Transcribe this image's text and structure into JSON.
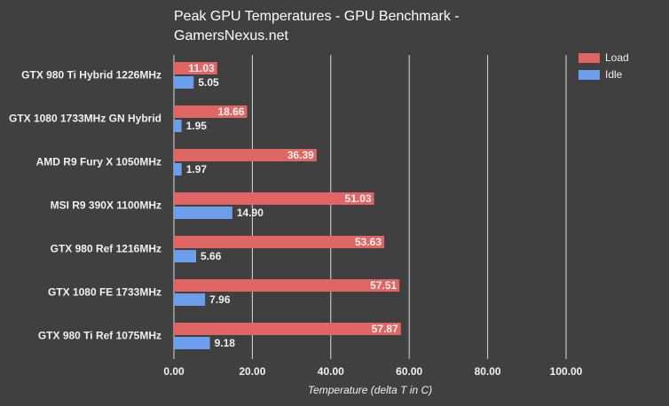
{
  "chart_data": {
    "type": "bar",
    "orientation": "horizontal",
    "title": "Peak GPU Temperatures - GPU Benchmark - GamersNexus.net",
    "x_label": "Temperature (delta T in C)",
    "categories": [
      "GTX 980 Ti Hybrid 1226MHz",
      "GTX 1080 1733MHz GN Hybrid",
      "AMD R9 Fury X 1050MHz",
      "MSI R9 390X 1100MHz",
      "GTX 980 Ref 1216MHz",
      "GTX 1080 FE 1733MHz",
      "GTX 980 Ti Ref 1075MHz"
    ],
    "series": [
      {
        "name": "Load",
        "color": "#e06666",
        "values": [
          11.03,
          18.66,
          36.39,
          51.03,
          53.63,
          57.51,
          57.87
        ],
        "value_labels": [
          "11.03",
          "18.66",
          "36.39",
          "51.03",
          "53.63",
          "57.51",
          "57.87"
        ]
      },
      {
        "name": "Idle",
        "color": "#6d9eeb",
        "values": [
          5.05,
          1.95,
          1.97,
          14.9,
          5.66,
          7.96,
          9.18
        ],
        "value_labels": [
          "5.05",
          "1.95",
          "1.97",
          "14.90",
          "5.66",
          "7.96",
          "9.18"
        ]
      }
    ],
    "xlim": [
      0,
      100
    ],
    "xticks": [
      {
        "value": 0,
        "label": "0.00"
      },
      {
        "value": 20,
        "label": "20.00"
      },
      {
        "value": 40,
        "label": "40.00"
      },
      {
        "value": 60,
        "label": "60.00"
      },
      {
        "value": 80,
        "label": "80.00"
      },
      {
        "value": 100,
        "label": "100.00"
      }
    ],
    "grid": true,
    "legend": "top-right"
  }
}
